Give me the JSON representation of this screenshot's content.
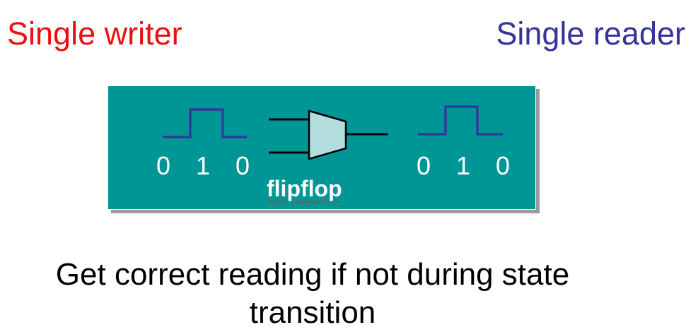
{
  "writer_label": "Single writer",
  "reader_label": "Single reader",
  "flipflop_label": "flipflop",
  "writer_bits": [
    "0",
    "1",
    "0"
  ],
  "reader_bits": [
    "0",
    "1",
    "0"
  ],
  "caption": "Get correct reading if not during state transition",
  "colors": {
    "writer": "#e81010",
    "reader": "#33339a",
    "panel": "#009696",
    "gate_fill": "#b4dde0",
    "signal_line": "#2c3d9a"
  }
}
